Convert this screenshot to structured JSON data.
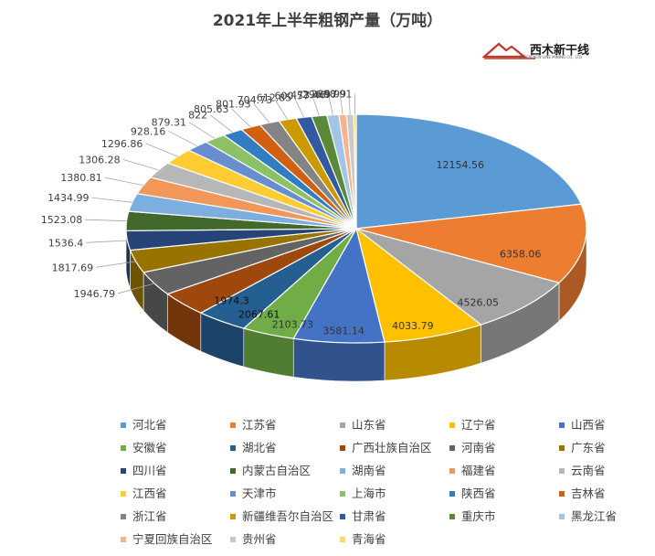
{
  "logo": {
    "text": "西木新干线",
    "subtext": "GREEN NEW LINE MINING CO., LTD"
  },
  "chart_data": {
    "type": "pie",
    "title": "2021年上半年粗钢产量（万吨）",
    "legend_position": "bottom",
    "slices": [
      {
        "name": "河北省",
        "value": 12154.56,
        "color": "#5B9BD5"
      },
      {
        "name": "江苏省",
        "value": 6358.06,
        "color": "#ED7D31"
      },
      {
        "name": "山东省",
        "value": 4526.05,
        "color": "#A5A5A5"
      },
      {
        "name": "辽宁省",
        "value": 4033.79,
        "color": "#FFC000"
      },
      {
        "name": "山西省",
        "value": 3581.14,
        "color": "#4472C4"
      },
      {
        "name": "安徽省",
        "value": 2103.73,
        "color": "#70AD47"
      },
      {
        "name": "湖北省",
        "value": 2067.61,
        "color": "#255E91"
      },
      {
        "name": "广西壮族自治区",
        "value": 1974.3,
        "color": "#9E480E"
      },
      {
        "name": "河南省",
        "value": 1946.79,
        "color": "#636363"
      },
      {
        "name": "广东省",
        "value": 1817.69,
        "color": "#997300"
      },
      {
        "name": "四川省",
        "value": 1536.4,
        "color": "#264478"
      },
      {
        "name": "内蒙古自治区",
        "value": 1523.08,
        "color": "#43682B"
      },
      {
        "name": "湖南省",
        "value": 1434.99,
        "color": "#7CAFDD"
      },
      {
        "name": "福建省",
        "value": 1380.81,
        "color": "#F1975A"
      },
      {
        "name": "云南省",
        "value": 1306.28,
        "color": "#B7B7B7"
      },
      {
        "name": "江西省",
        "value": 1296.86,
        "color": "#FFCD33"
      },
      {
        "name": "天津市",
        "value": 928.16,
        "color": "#698ED0"
      },
      {
        "name": "上海市",
        "value": 879.31,
        "color": "#8CC168"
      },
      {
        "name": "陕西省",
        "value": 822,
        "color": "#327DC2"
      },
      {
        "name": "吉林省",
        "value": 805.63,
        "color": "#D26012"
      },
      {
        "name": "浙江省",
        "value": 801.93,
        "color": "#848484"
      },
      {
        "name": "新疆维吾尔自治区",
        "value": 704.73,
        "color": "#CC9A00"
      },
      {
        "name": "甘肃省",
        "value": 612.85,
        "color": "#335AA1"
      },
      {
        "name": "重庆市",
        "value": 600.57,
        "color": "#5A8A39"
      },
      {
        "name": "黑龙江省",
        "value": 473.46,
        "color": "#A2C4E6"
      },
      {
        "name": "宁夏回族自治区",
        "value": 296.97,
        "color": "#F5B48B"
      },
      {
        "name": "贵州省",
        "value": 285.99,
        "color": "#C9C9C9"
      },
      {
        "name": "青海省",
        "value": 98.91,
        "color": "#FFD966"
      }
    ]
  }
}
